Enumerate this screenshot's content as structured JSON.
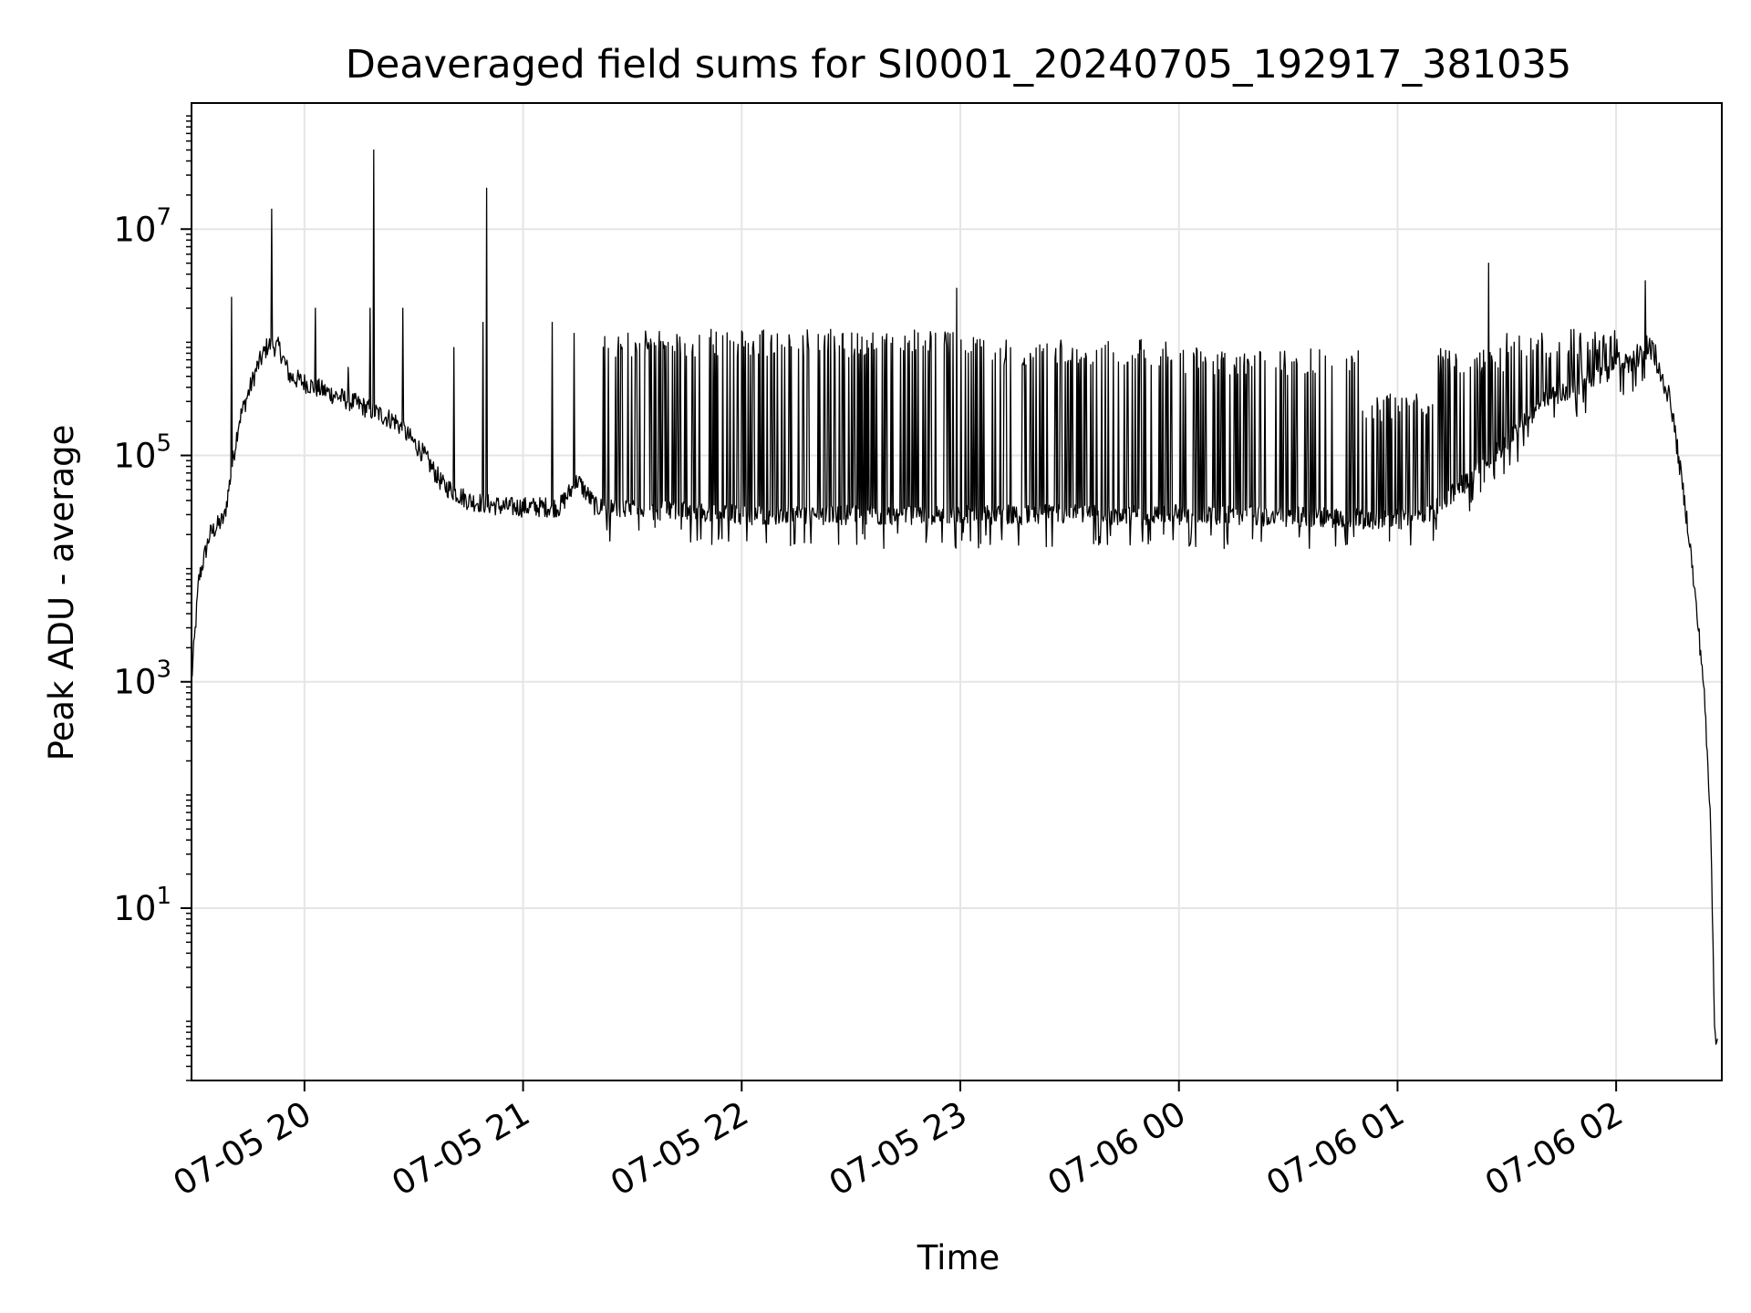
{
  "chart_data": {
    "type": "line",
    "title": "Deaveraged field sums for SI0001_20240705_192917_381035",
    "xlabel": "Time",
    "ylabel": "Peak ADU - average",
    "yscale": "log",
    "ylim": [
      0.3,
      130000000
    ],
    "xlim": [
      "07-05 19:29",
      "07-06 02:29"
    ],
    "grid": true,
    "line_color": "#000000",
    "x_ticks": [
      "07-05 20",
      "07-05 21",
      "07-05 22",
      "07-05 23",
      "07-06 00",
      "07-06 01",
      "07-06 02"
    ],
    "y_ticks": [
      {
        "base": "10",
        "exp": "1",
        "value": 10
      },
      {
        "base": "10",
        "exp": "3",
        "value": 1000
      },
      {
        "base": "10",
        "exp": "5",
        "value": 100000
      },
      {
        "base": "10",
        "exp": "7",
        "value": 10000000
      }
    ],
    "baseline_points": [
      [
        "07-05 19:29",
        1000
      ],
      [
        "07-05 19:31",
        8000
      ],
      [
        "07-05 19:34",
        20000
      ],
      [
        "07-05 19:38",
        28000
      ],
      [
        "07-05 19:42",
        200000
      ],
      [
        "07-05 19:47",
        600000
      ],
      [
        "07-05 19:50",
        950000
      ],
      [
        "07-05 19:53",
        900000
      ],
      [
        "07-05 19:56",
        500000
      ],
      [
        "07-05 20:03",
        400000
      ],
      [
        "07-05 20:15",
        280000
      ],
      [
        "07-05 20:25",
        200000
      ],
      [
        "07-05 20:32",
        110000
      ],
      [
        "07-05 20:38",
        55000
      ],
      [
        "07-05 20:45",
        40000
      ],
      [
        "07-05 20:55",
        35000
      ],
      [
        "07-05 21:10",
        35000
      ],
      [
        "07-05 21:15",
        60000
      ],
      [
        "07-05 21:20",
        35000
      ],
      [
        "07-05 22:00",
        30000
      ],
      [
        "07-05 23:00",
        30000
      ],
      [
        "07-06 00:00",
        30000
      ],
      [
        "07-06 00:45",
        28000
      ],
      [
        "07-06 01:00",
        27000
      ],
      [
        "07-06 01:10",
        32000
      ],
      [
        "07-06 01:25",
        90000
      ],
      [
        "07-06 01:40",
        300000
      ],
      [
        "07-06 02:00",
        600000
      ],
      [
        "07-06 02:10",
        800000
      ],
      [
        "07-06 02:15",
        300000
      ],
      [
        "07-06 02:20",
        20000
      ],
      [
        "07-06 02:24",
        1000
      ],
      [
        "07-06 02:26",
        50
      ],
      [
        "07-06 02:27",
        1
      ],
      [
        "07-06 02:28",
        0.5
      ]
    ],
    "spike_bands": [
      {
        "start": "07-05 21:22",
        "end": "07-05 23:00",
        "high": 1300000
      },
      {
        "start": "07-05 23:00",
        "end": "07-06 00:00",
        "high": 1100000
      },
      {
        "start": "07-06 00:00",
        "end": "07-06 00:50",
        "high": 900000
      },
      {
        "start": "07-06 00:50",
        "end": "07-06 01:10",
        "high": 350000
      },
      {
        "start": "07-06 01:10",
        "end": "07-06 01:30",
        "high": 900000
      },
      {
        "start": "07-06 01:30",
        "end": "07-06 02:12",
        "high": 1300000
      }
    ],
    "isolated_spikes": [
      [
        "07-05 19:40",
        2500000
      ],
      [
        "07-05 19:51",
        15000000
      ],
      [
        "07-05 20:03",
        2000000
      ],
      [
        "07-05 20:12",
        600000
      ],
      [
        "07-05 20:18",
        2000000
      ],
      [
        "07-05 20:19",
        50000000
      ],
      [
        "07-05 20:27",
        2000000
      ],
      [
        "07-05 20:41",
        900000
      ],
      [
        "07-05 20:49",
        1500000
      ],
      [
        "07-05 20:50",
        23000000
      ],
      [
        "07-05 21:08",
        1500000
      ],
      [
        "07-05 21:14",
        1200000
      ],
      [
        "07-05 22:59",
        3000000
      ],
      [
        "07-06 01:25",
        5000000
      ],
      [
        "07-06 02:08",
        3500000
      ]
    ]
  }
}
